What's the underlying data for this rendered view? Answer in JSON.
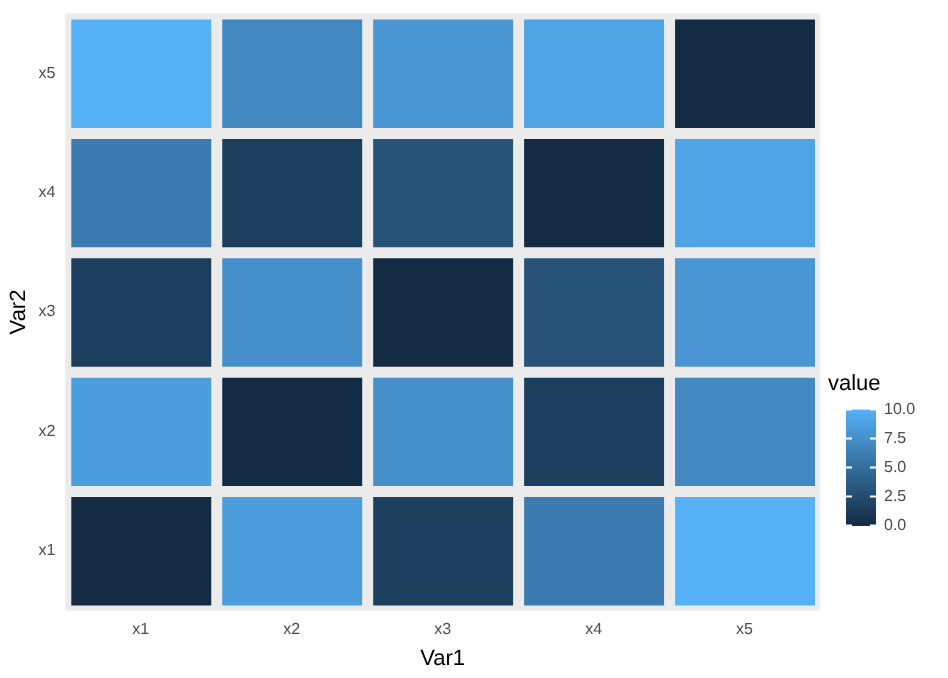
{
  "chart_data": {
    "type": "heatmap",
    "xlabel": "Var1",
    "ylabel": "Var2",
    "legend_title": "value",
    "categories": [
      "x1",
      "x2",
      "x3",
      "x4",
      "x5"
    ],
    "y_categories": [
      "x5",
      "x4",
      "x3",
      "x2",
      "x1"
    ],
    "cells": [
      [
        10,
        7,
        8,
        9,
        0
      ],
      [
        6,
        1.5,
        3,
        0,
        9
      ],
      [
        1.5,
        7.5,
        0,
        3,
        8
      ],
      [
        8.5,
        0,
        7.5,
        1.5,
        7
      ],
      [
        0,
        8.5,
        1.5,
        6,
        10
      ]
    ],
    "clim": [
      0,
      10
    ],
    "cticks": [
      {
        "value": 0,
        "label": "0.0"
      },
      {
        "value": 2.5,
        "label": "2.5"
      },
      {
        "value": 5,
        "label": "5.0"
      },
      {
        "value": 7.5,
        "label": "7.5"
      },
      {
        "value": 10,
        "label": "10.0"
      }
    ]
  }
}
